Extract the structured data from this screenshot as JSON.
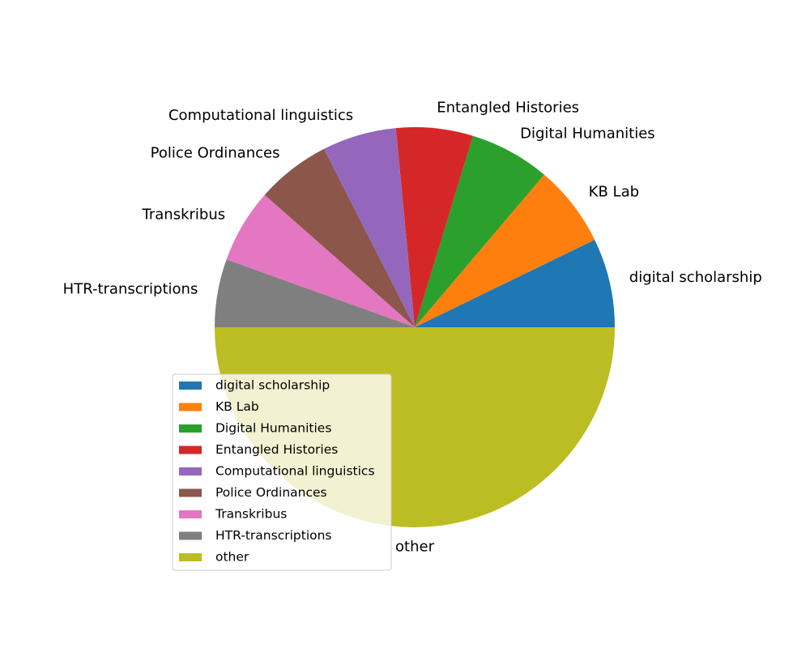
{
  "chart_data": {
    "type": "pie",
    "title": "",
    "labels": [
      "digital scholarship",
      "KB Lab",
      "Digital Humanities",
      "Entangled Histories",
      "Computational linguistics",
      "Police Ordinances",
      "Transkribus",
      "HTR-transcriptions",
      "other"
    ],
    "values": [
      7.2,
      6.6,
      6.5,
      6.2,
      6.0,
      6.0,
      6.0,
      5.5,
      50.0
    ],
    "colors": [
      "#1f77b4",
      "#ff7f0e",
      "#2ca02c",
      "#d62728",
      "#9467bd",
      "#8c564b",
      "#e377c2",
      "#7f7f7f",
      "#bcbd22"
    ],
    "start_angle_deg": 0,
    "direction": "counterclockwise",
    "legend": {
      "placement": "lower-left",
      "entries": [
        "digital scholarship",
        "KB Lab",
        "Digital Humanities",
        "Entangled Histories",
        "Computational linguistics",
        "Police Ordinances",
        "Transkribus",
        "HTR-transcriptions",
        "other"
      ]
    }
  }
}
